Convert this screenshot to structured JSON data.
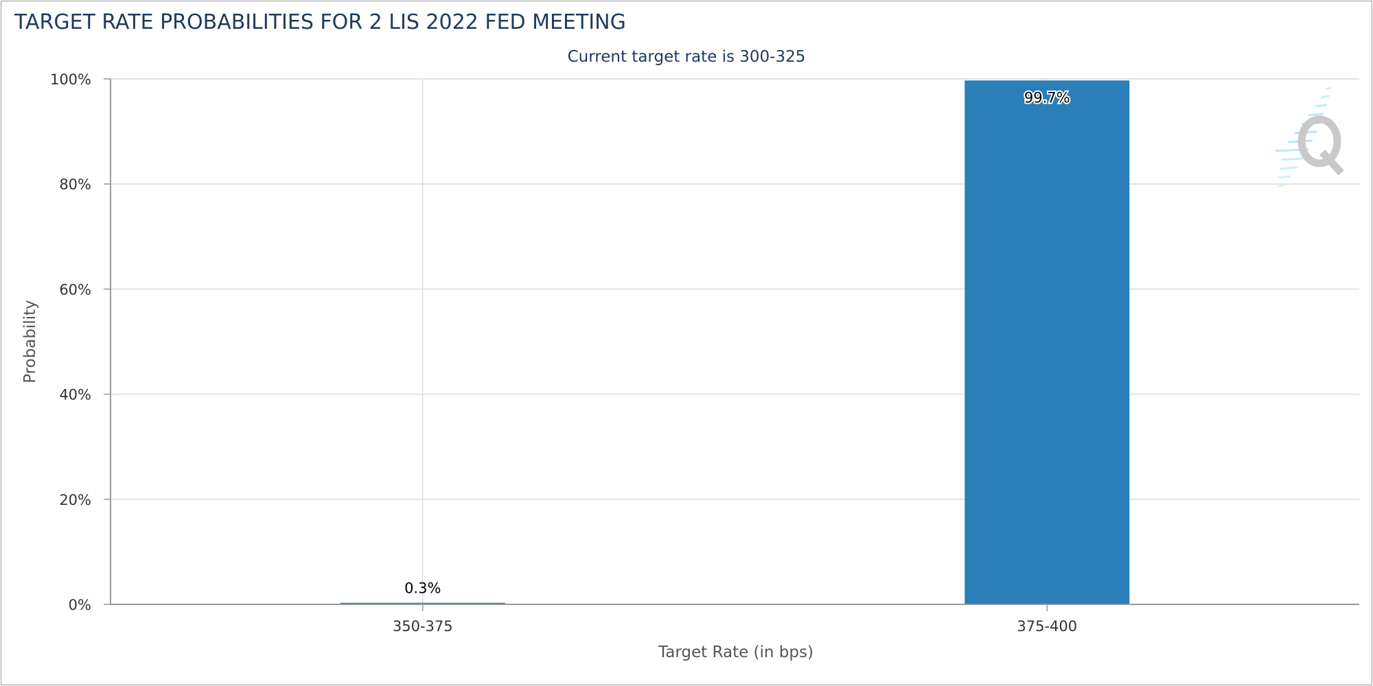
{
  "header": {
    "title": "TARGET RATE PROBABILITIES FOR 2 LIS 2022 FED MEETING",
    "subtitle": "Current target rate is 300-325"
  },
  "chart_data": {
    "type": "bar",
    "title": "TARGET RATE PROBABILITIES FOR 2 LIS 2022 FED MEETING",
    "subtitle": "Current target rate is 300-325",
    "categories": [
      "350-375",
      "375-400"
    ],
    "values": [
      0.3,
      99.7
    ],
    "data_labels": [
      "0.3%",
      "99.7%"
    ],
    "xlabel": "Target Rate (in bps)",
    "ylabel": "Probability",
    "ylim": [
      0,
      100
    ],
    "y_ticks": [
      0,
      20,
      40,
      60,
      80,
      100
    ],
    "y_tick_labels": [
      "0%",
      "20%",
      "40%",
      "60%",
      "80%",
      "100%"
    ],
    "grid": true,
    "legend": "none",
    "bar_color": "#2a7fb8",
    "grid_color": "#dcdcdc",
    "axis_color": "#999999",
    "title_color": "#1f3a5f",
    "watermark_icon": "cme-fedwatch-q-logo"
  }
}
